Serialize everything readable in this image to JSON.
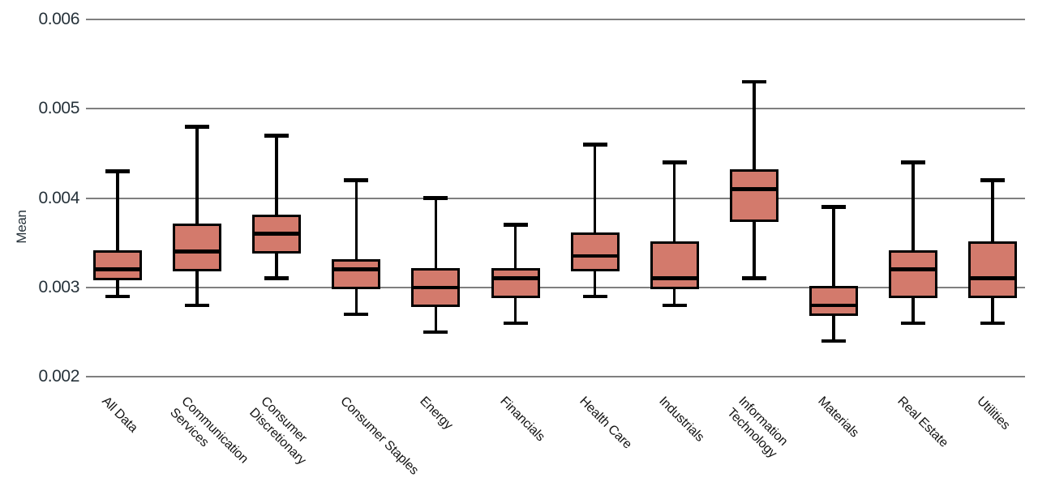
{
  "chart_data": {
    "type": "boxplot",
    "title": "",
    "xlabel": "",
    "ylabel": "Mean",
    "ylim": [
      0.002,
      0.006
    ],
    "yticks": [
      0.002,
      0.003,
      0.004,
      0.005,
      0.006
    ],
    "ytick_labels": [
      "0.002",
      "0.003",
      "0.004",
      "0.005",
      "0.006"
    ],
    "grid": "horizontal",
    "legend_position": "none",
    "colors": {
      "box_fill": "#d37a6c",
      "box_edge": "#000000",
      "median": "#000000",
      "whisker": "#000000",
      "gridline": "#7f7f7f",
      "y_axis_text": "#26323a",
      "x_axis_text": "#141414"
    },
    "categories": [
      "All Data",
      "Communication Services",
      "Consumer Discretionary",
      "Consumer Staples",
      "Energy",
      "Financials",
      "Health Care",
      "Industrials",
      "Information Technology",
      "Materials",
      "Real Estate",
      "Utilities"
    ],
    "boxes": [
      {
        "label": "All Data",
        "lines": [
          "All Data"
        ],
        "whisker_low": 0.0029,
        "q1": 0.0031,
        "median": 0.0032,
        "q3": 0.0034,
        "whisker_high": 0.0043
      },
      {
        "label": "Communication Services",
        "lines": [
          "Communication",
          "Services"
        ],
        "whisker_low": 0.0028,
        "q1": 0.0032,
        "median": 0.0034,
        "q3": 0.0037,
        "whisker_high": 0.0048
      },
      {
        "label": "Consumer Discretionary",
        "lines": [
          "Consumer",
          "Discretionary"
        ],
        "whisker_low": 0.0031,
        "q1": 0.0034,
        "median": 0.0036,
        "q3": 0.0038,
        "whisker_high": 0.0047
      },
      {
        "label": "Consumer Staples",
        "lines": [
          "Consumer Staples"
        ],
        "whisker_low": 0.0027,
        "q1": 0.003,
        "median": 0.0032,
        "q3": 0.0033,
        "whisker_high": 0.0042
      },
      {
        "label": "Energy",
        "lines": [
          "Energy"
        ],
        "whisker_low": 0.0025,
        "q1": 0.0028,
        "median": 0.003,
        "q3": 0.0032,
        "whisker_high": 0.004
      },
      {
        "label": "Financials",
        "lines": [
          "Financials"
        ],
        "whisker_low": 0.0026,
        "q1": 0.0029,
        "median": 0.0031,
        "q3": 0.0032,
        "whisker_high": 0.0037
      },
      {
        "label": "Health Care",
        "lines": [
          "Health Care"
        ],
        "whisker_low": 0.0029,
        "q1": 0.0032,
        "median": 0.00335,
        "q3": 0.0036,
        "whisker_high": 0.0046
      },
      {
        "label": "Industrials",
        "lines": [
          "Industrials"
        ],
        "whisker_low": 0.0028,
        "q1": 0.003,
        "median": 0.0031,
        "q3": 0.0035,
        "whisker_high": 0.0044
      },
      {
        "label": "Information Technology",
        "lines": [
          "Information",
          "Technology"
        ],
        "whisker_low": 0.0031,
        "q1": 0.00375,
        "median": 0.0041,
        "q3": 0.0043,
        "whisker_high": 0.0053
      },
      {
        "label": "Materials",
        "lines": [
          "Materials"
        ],
        "whisker_low": 0.0024,
        "q1": 0.0027,
        "median": 0.0028,
        "q3": 0.003,
        "whisker_high": 0.0039
      },
      {
        "label": "Real Estate",
        "lines": [
          "Real Estate"
        ],
        "whisker_low": 0.0026,
        "q1": 0.0029,
        "median": 0.0032,
        "q3": 0.0034,
        "whisker_high": 0.0044
      },
      {
        "label": "Utilities",
        "lines": [
          "Utilities"
        ],
        "whisker_low": 0.0026,
        "q1": 0.0029,
        "median": 0.0031,
        "q3": 0.0035,
        "whisker_high": 0.0042
      }
    ]
  }
}
